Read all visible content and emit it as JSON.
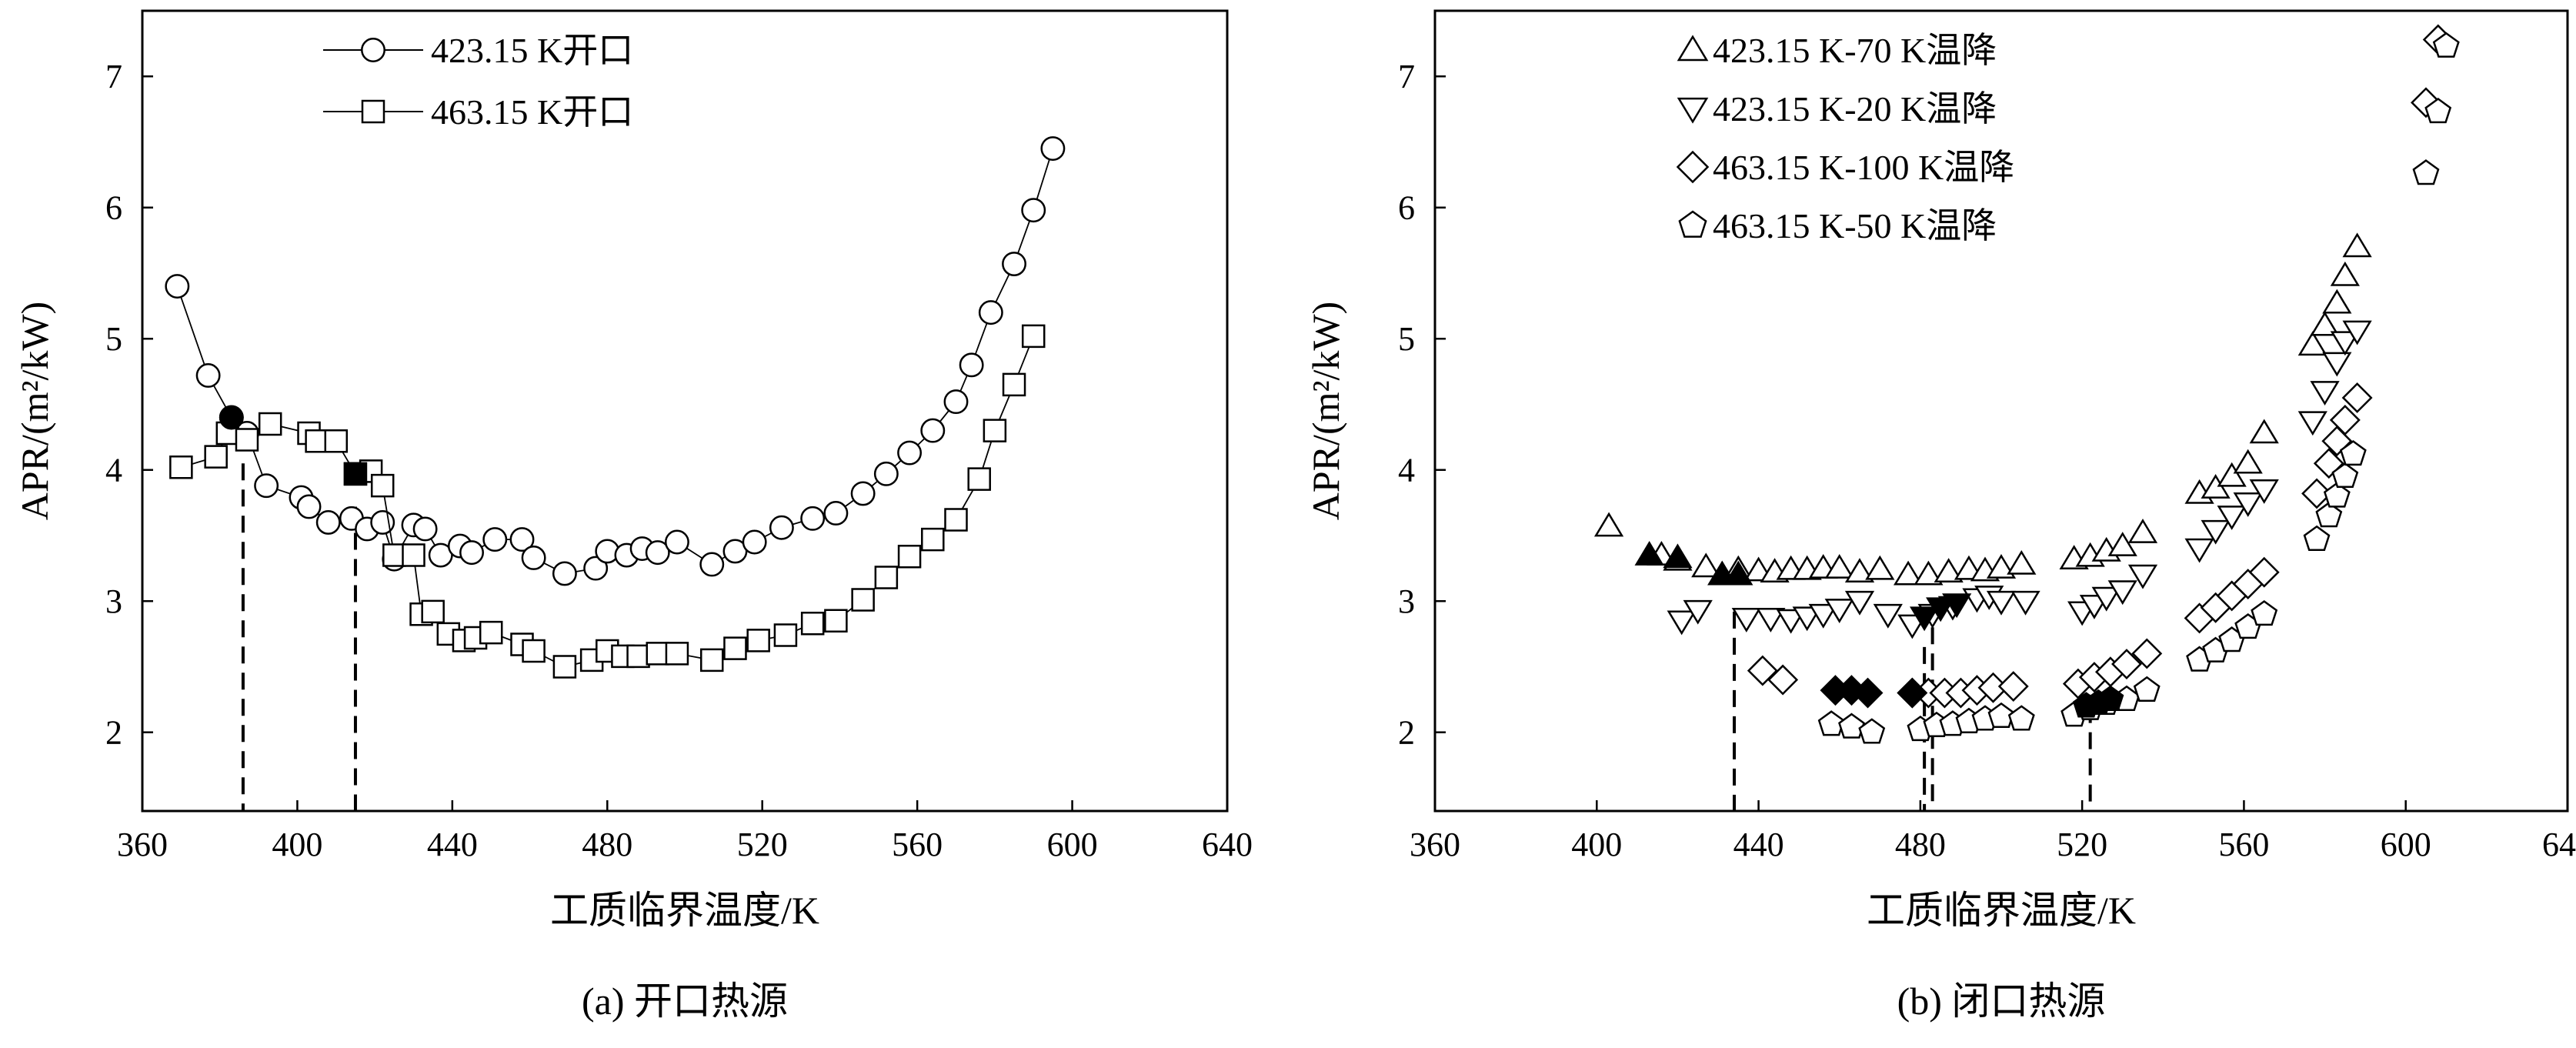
{
  "chart_data": [
    {
      "type": "scatter",
      "caption": "(a) 开口热源",
      "xlabel": "工质临界温度/K",
      "ylabel": "APR/(m²/kW)",
      "xlim": [
        360,
        640
      ],
      "ylim": [
        1.4,
        7.5
      ],
      "xticks": [
        360,
        400,
        440,
        480,
        520,
        560,
        600,
        640
      ],
      "yticks": [
        2,
        3,
        4,
        5,
        6,
        7
      ],
      "legend_position": "top-left",
      "series": [
        {
          "name": "423.15 K开口",
          "marker": "circle",
          "connected": true,
          "points": [
            [
              369,
              5.4
            ],
            [
              377,
              4.72
            ],
            [
              383,
              4.4
            ],
            [
              387,
              4.28
            ],
            [
              392,
              3.88
            ],
            [
              401,
              3.79
            ],
            [
              403,
              3.72
            ],
            [
              408,
              3.6
            ],
            [
              414,
              3.63
            ],
            [
              418,
              3.55
            ],
            [
              422,
              3.6
            ],
            [
              425,
              3.32
            ],
            [
              430,
              3.58
            ],
            [
              433,
              3.55
            ],
            [
              437,
              3.35
            ],
            [
              442,
              3.42
            ],
            [
              445,
              3.37
            ],
            [
              451,
              3.47
            ],
            [
              458,
              3.47
            ],
            [
              461,
              3.33
            ],
            [
              469,
              3.21
            ],
            [
              477,
              3.25
            ],
            [
              480,
              3.38
            ],
            [
              485,
              3.35
            ],
            [
              489,
              3.4
            ],
            [
              493,
              3.37
            ],
            [
              498,
              3.45
            ],
            [
              507,
              3.28
            ],
            [
              513,
              3.38
            ],
            [
              518,
              3.45
            ],
            [
              525,
              3.56
            ],
            [
              533,
              3.63
            ],
            [
              539,
              3.67
            ],
            [
              546,
              3.82
            ],
            [
              552,
              3.97
            ],
            [
              558,
              4.13
            ],
            [
              564,
              4.3
            ],
            [
              570,
              4.52
            ],
            [
              574,
              4.8
            ],
            [
              579,
              5.2
            ],
            [
              585,
              5.57
            ],
            [
              590,
              5.98
            ],
            [
              595,
              6.45
            ]
          ]
        },
        {
          "name": "463.15 K开口",
          "marker": "square",
          "connected": true,
          "points": [
            [
              370,
              4.02
            ],
            [
              379,
              4.1
            ],
            [
              382,
              4.28
            ],
            [
              387,
              4.23
            ],
            [
              393,
              4.35
            ],
            [
              403,
              4.28
            ],
            [
              405,
              4.22
            ],
            [
              410,
              4.22
            ],
            [
              415,
              3.97
            ],
            [
              419,
              3.99
            ],
            [
              422,
              3.88
            ],
            [
              425,
              3.35
            ],
            [
              430,
              3.35
            ],
            [
              432,
              2.9
            ],
            [
              435,
              2.92
            ],
            [
              439,
              2.75
            ],
            [
              443,
              2.7
            ],
            [
              446,
              2.72
            ],
            [
              450,
              2.76
            ],
            [
              458,
              2.67
            ],
            [
              461,
              2.62
            ],
            [
              469,
              2.5
            ],
            [
              476,
              2.55
            ],
            [
              480,
              2.62
            ],
            [
              484,
              2.58
            ],
            [
              488,
              2.58
            ],
            [
              493,
              2.6
            ],
            [
              498,
              2.6
            ],
            [
              507,
              2.55
            ],
            [
              513,
              2.64
            ],
            [
              519,
              2.7
            ],
            [
              526,
              2.74
            ],
            [
              533,
              2.83
            ],
            [
              539,
              2.85
            ],
            [
              546,
              3.01
            ],
            [
              552,
              3.18
            ],
            [
              558,
              3.34
            ],
            [
              564,
              3.47
            ],
            [
              570,
              3.62
            ],
            [
              576,
              3.93
            ],
            [
              580,
              4.3
            ],
            [
              585,
              4.65
            ],
            [
              590,
              5.02
            ]
          ]
        }
      ],
      "highlighted_points": [
        {
          "x": 383,
          "y": 4.4,
          "marker": "circle"
        },
        {
          "x": 415,
          "y": 3.97,
          "marker": "square"
        }
      ],
      "reference_lines": [
        {
          "x": 386,
          "y_top": 4.05
        },
        {
          "x": 415,
          "y_top": 3.72
        }
      ]
    },
    {
      "type": "scatter",
      "caption": "(b) 闭口热源",
      "xlabel": "工质临界温度/K",
      "ylabel": "APR/(m²/kW)",
      "xlim": [
        360,
        640
      ],
      "ylim": [
        1.4,
        7.5
      ],
      "xticks": [
        360,
        400,
        440,
        480,
        520,
        560,
        600,
        640
      ],
      "yticks": [
        2,
        3,
        4,
        5,
        6,
        7
      ],
      "legend_position": "top-left",
      "series": [
        {
          "name": "423.15 K-70 K温降",
          "marker": "triangle-up",
          "connected": false,
          "points": [
            [
              403,
              3.57
            ],
            [
              416,
              3.35
            ],
            [
              420,
              3.31
            ],
            [
              427,
              3.26
            ],
            [
              431,
              3.2
            ],
            [
              435,
              3.24
            ],
            [
              440,
              3.23
            ],
            [
              444,
              3.22
            ],
            [
              448,
              3.24
            ],
            [
              452,
              3.24
            ],
            [
              456,
              3.25
            ],
            [
              460,
              3.25
            ],
            [
              465,
              3.22
            ],
            [
              470,
              3.24
            ],
            [
              477,
              3.2
            ],
            [
              482,
              3.2
            ],
            [
              487,
              3.22
            ],
            [
              492,
              3.24
            ],
            [
              496,
              3.23
            ],
            [
              500,
              3.25
            ],
            [
              505,
              3.28
            ],
            [
              518,
              3.32
            ],
            [
              522,
              3.34
            ],
            [
              526,
              3.38
            ],
            [
              530,
              3.42
            ],
            [
              535,
              3.52
            ],
            [
              549,
              3.82
            ],
            [
              553,
              3.86
            ],
            [
              557,
              3.95
            ],
            [
              561,
              4.05
            ],
            [
              565,
              4.28
            ],
            [
              577,
              4.95
            ],
            [
              580,
              5.1
            ],
            [
              583,
              5.27
            ],
            [
              585,
              5.48
            ],
            [
              588,
              5.7
            ]
          ]
        },
        {
          "name": "423.15 K-20 K温降",
          "marker": "triangle-down",
          "connected": false,
          "points": [
            [
              421,
              2.85
            ],
            [
              425,
              2.93
            ],
            [
              437,
              2.87
            ],
            [
              443,
              2.87
            ],
            [
              448,
              2.86
            ],
            [
              452,
              2.88
            ],
            [
              456,
              2.9
            ],
            [
              460,
              2.94
            ],
            [
              465,
              3.0
            ],
            [
              472,
              2.9
            ],
            [
              478,
              2.82
            ],
            [
              483,
              2.9
            ],
            [
              488,
              2.96
            ],
            [
              494,
              3.02
            ],
            [
              497,
              3.04
            ],
            [
              500,
              3.0
            ],
            [
              506,
              3.0
            ],
            [
              520,
              2.92
            ],
            [
              523,
              2.97
            ],
            [
              526,
              3.03
            ],
            [
              530,
              3.08
            ],
            [
              535,
              3.2
            ],
            [
              549,
              3.4
            ],
            [
              553,
              3.54
            ],
            [
              557,
              3.65
            ],
            [
              561,
              3.75
            ],
            [
              565,
              3.85
            ],
            [
              577,
              4.37
            ],
            [
              580,
              4.6
            ],
            [
              583,
              4.82
            ],
            [
              585,
              4.98
            ],
            [
              588,
              5.06
            ]
          ]
        },
        {
          "name": "463.15 K-100 K温降",
          "marker": "diamond",
          "connected": false,
          "points": [
            [
              441,
              2.47
            ],
            [
              446,
              2.4
            ],
            [
              478,
              2.3
            ],
            [
              482,
              2.3
            ],
            [
              486,
              2.3
            ],
            [
              490,
              2.3
            ],
            [
              494,
              2.32
            ],
            [
              498,
              2.34
            ],
            [
              503,
              2.35
            ],
            [
              519,
              2.37
            ],
            [
              523,
              2.42
            ],
            [
              527,
              2.46
            ],
            [
              531,
              2.52
            ],
            [
              536,
              2.6
            ],
            [
              549,
              2.87
            ],
            [
              553,
              2.95
            ],
            [
              557,
              3.04
            ],
            [
              561,
              3.13
            ],
            [
              565,
              3.22
            ],
            [
              578,
              3.82
            ],
            [
              581,
              4.05
            ],
            [
              583,
              4.22
            ],
            [
              585,
              4.38
            ],
            [
              588,
              4.55
            ],
            [
              605,
              6.8
            ],
            [
              608,
              7.28
            ]
          ]
        },
        {
          "name": "463.15 K-50 K温降",
          "marker": "pentagon",
          "connected": false,
          "points": [
            [
              458,
              2.06
            ],
            [
              463,
              2.04
            ],
            [
              468,
              2.0
            ],
            [
              480,
              2.02
            ],
            [
              484,
              2.05
            ],
            [
              488,
              2.06
            ],
            [
              492,
              2.08
            ],
            [
              496,
              2.1
            ],
            [
              500,
              2.12
            ],
            [
              505,
              2.1
            ],
            [
              518,
              2.13
            ],
            [
              522,
              2.18
            ],
            [
              526,
              2.22
            ],
            [
              531,
              2.25
            ],
            [
              536,
              2.32
            ],
            [
              549,
              2.55
            ],
            [
              553,
              2.62
            ],
            [
              557,
              2.7
            ],
            [
              561,
              2.8
            ],
            [
              565,
              2.9
            ],
            [
              578,
              3.47
            ],
            [
              581,
              3.65
            ],
            [
              583,
              3.8
            ],
            [
              585,
              3.95
            ],
            [
              587,
              4.12
            ],
            [
              605,
              6.26
            ],
            [
              608,
              6.73
            ],
            [
              610,
              7.23
            ]
          ]
        }
      ],
      "highlighted_points": [
        {
          "x": 413,
          "y": 3.35,
          "marker": "triangle-up"
        },
        {
          "x": 420,
          "y": 3.33,
          "marker": "triangle-up"
        },
        {
          "x": 431,
          "y": 3.2,
          "marker": "triangle-up"
        },
        {
          "x": 435,
          "y": 3.2,
          "marker": "triangle-up"
        },
        {
          "x": 481,
          "y": 2.88,
          "marker": "triangle-down"
        },
        {
          "x": 485,
          "y": 2.95,
          "marker": "triangle-down"
        },
        {
          "x": 489,
          "y": 2.98,
          "marker": "triangle-down"
        },
        {
          "x": 459,
          "y": 2.32,
          "marker": "diamond"
        },
        {
          "x": 463,
          "y": 2.32,
          "marker": "diamond"
        },
        {
          "x": 467,
          "y": 2.3,
          "marker": "diamond"
        },
        {
          "x": 478,
          "y": 2.3,
          "marker": "diamond"
        },
        {
          "x": 521,
          "y": 2.2,
          "marker": "pentagon"
        },
        {
          "x": 524,
          "y": 2.22,
          "marker": "pentagon"
        },
        {
          "x": 527,
          "y": 2.25,
          "marker": "pentagon"
        }
      ],
      "reference_lines": [
        {
          "x": 434,
          "y_top": 2.92
        },
        {
          "x": 481,
          "y_top": 2.65
        },
        {
          "x": 483,
          "y_top": 2.8
        },
        {
          "x": 522,
          "y_top": 2.2
        }
      ]
    }
  ]
}
